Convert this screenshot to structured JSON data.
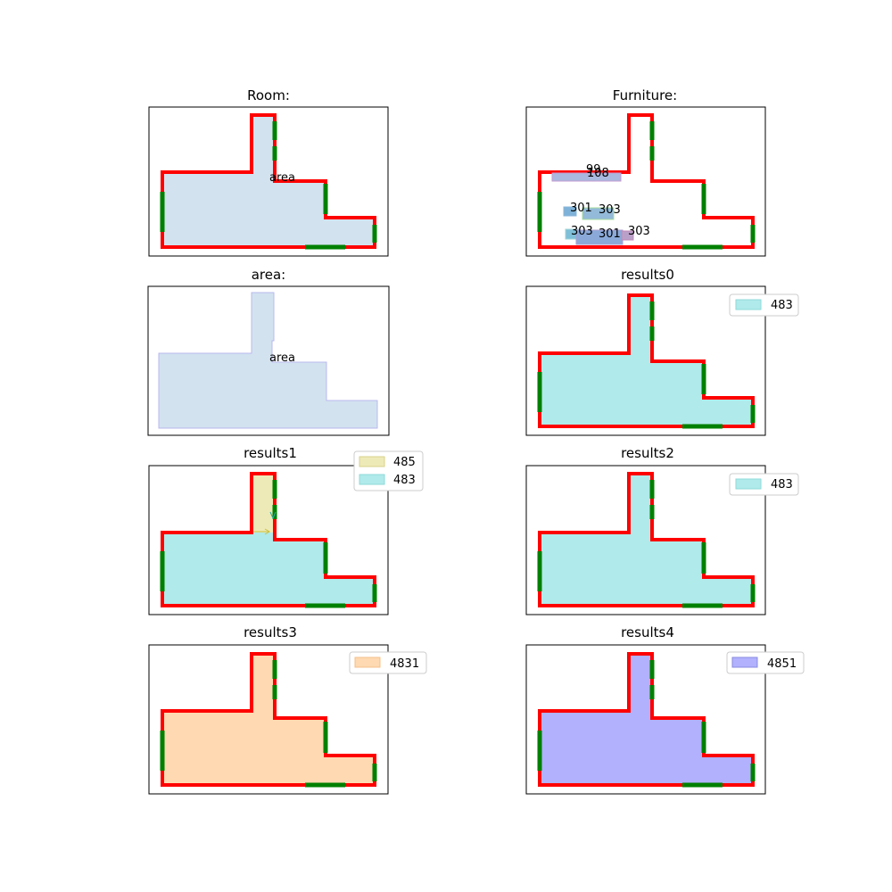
{
  "panels": [
    {
      "title": "Room:"
    },
    {
      "title": "Furniture:"
    },
    {
      "title": "area:"
    },
    {
      "title": "results0"
    },
    {
      "title": "results1"
    },
    {
      "title": "results2"
    },
    {
      "title": "results3"
    },
    {
      "title": "results4"
    }
  ],
  "room_label": "area",
  "area_label": "area",
  "furniture_labels": [
    "99",
    "108",
    "301",
    "303",
    "303",
    "301",
    "303"
  ],
  "legends": {
    "results0": [
      {
        "label": "483",
        "color": "#b0eaea"
      }
    ],
    "results1": [
      {
        "label": "485",
        "color": "#eeeab8"
      },
      {
        "label": "483",
        "color": "#b0eaea"
      }
    ],
    "results2": [
      {
        "label": "483",
        "color": "#b0eaea"
      }
    ],
    "results3": [
      {
        "label": "4831",
        "color": "#fed9b1"
      }
    ],
    "results4": [
      {
        "label": "4851",
        "color": "#b1b1fe"
      }
    ]
  },
  "colors": {
    "wall": "#ff0000",
    "door": "#008000",
    "room_fill": "#d2e2ef",
    "area_edge": "#b8b8ee"
  }
}
